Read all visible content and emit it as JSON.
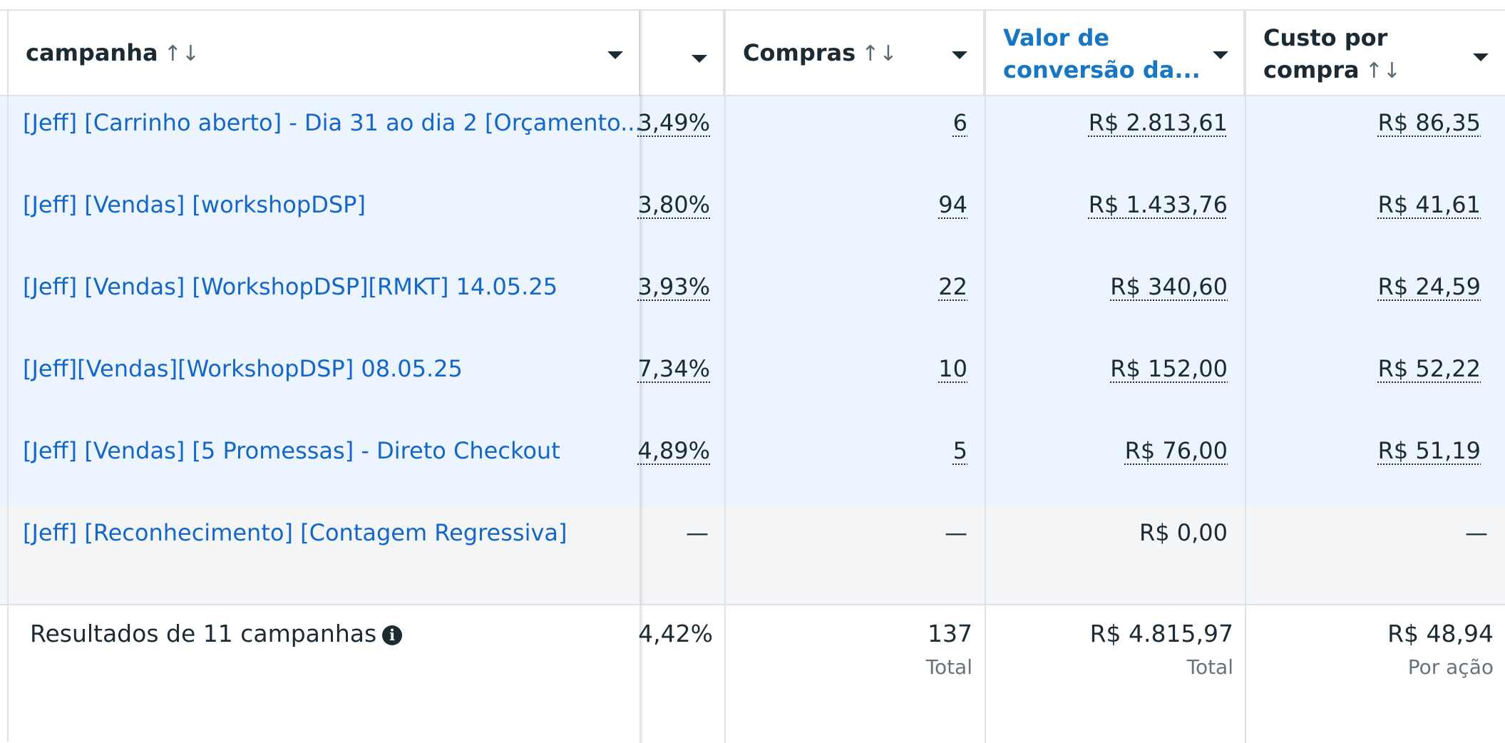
{
  "columns": {
    "campaign": {
      "label": "campanha"
    },
    "hidden": {
      "label": ""
    },
    "purchases": {
      "label": "Compras"
    },
    "conversion_value": {
      "label_line1": "Valor de",
      "label_line2": "conversão da..."
    },
    "cost_per_purchase": {
      "label_line1": "Custo por",
      "label_line2": "compra"
    }
  },
  "icons": {
    "sort": "↑↓",
    "caret": "chevron-down-icon",
    "info": "i"
  },
  "rows": [
    {
      "name": "[Jeff] [Carrinho aberto] - Dia 31 ao dia 2 [Orçamento...",
      "pct": "3,49%",
      "purchases": "6",
      "value": "R$ 2.813,61",
      "cost": "R$ 86,35"
    },
    {
      "name": "[Jeff] [Vendas] [workshopDSP]",
      "pct": "3,80%",
      "purchases": "94",
      "value": "R$ 1.433,76",
      "cost": "R$ 41,61"
    },
    {
      "name": "[Jeff] [Vendas] [WorkshopDSP][RMKT] 14.05.25",
      "pct": "3,93%",
      "purchases": "22",
      "value": "R$ 340,60",
      "cost": "R$ 24,59"
    },
    {
      "name": "[Jeff][Vendas][WorkshopDSP] 08.05.25",
      "pct": "7,34%",
      "purchases": "10",
      "value": "R$ 152,00",
      "cost": "R$ 52,22"
    },
    {
      "name": "[Jeff] [Vendas] [5 Promessas] - Direto Checkout",
      "pct": "4,89%",
      "purchases": "5",
      "value": "R$ 76,00",
      "cost": "R$ 51,19"
    },
    {
      "name": "[Jeff] [Reconhecimento] [Contagem Regressiva]",
      "pct": "—",
      "purchases": "—",
      "value": "R$ 0,00",
      "cost": "—"
    }
  ],
  "footer": {
    "label": "Resultados de 11 campanhas",
    "pct": "4,42%",
    "purchases": "137",
    "purchases_sub": "Total",
    "value": "R$ 4.815,97",
    "value_sub": "Total",
    "cost": "R$ 48,94",
    "cost_sub": "Por ação"
  }
}
